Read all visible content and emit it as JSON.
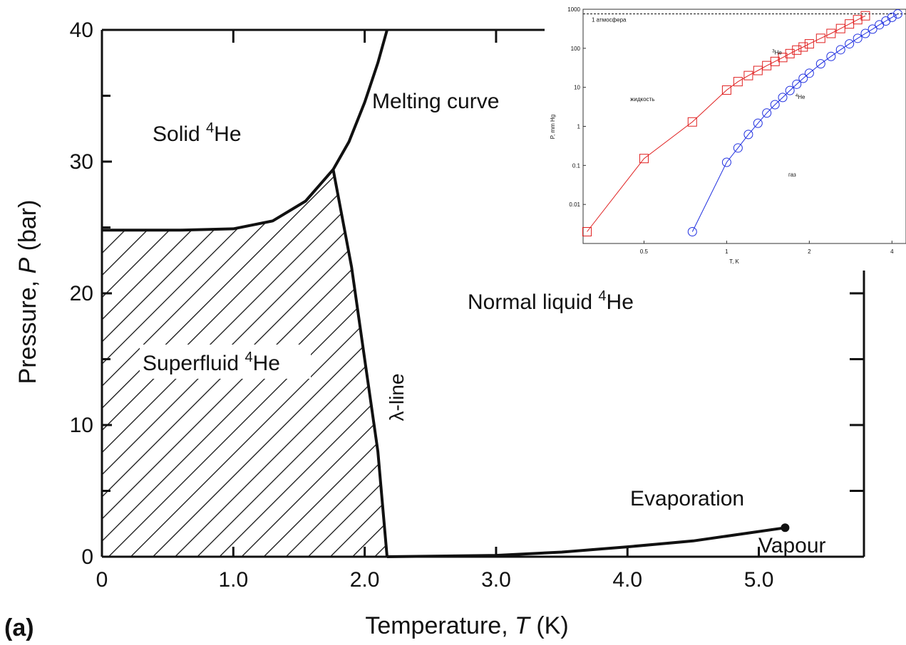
{
  "figure_label": "(a)",
  "chart_data": [
    {
      "type": "line",
      "title": "",
      "xlabel": "Temperature, T (K)",
      "ylabel": "Pressure, P (bar)",
      "xlabel_parts": {
        "pre": "Temperature, ",
        "var": "T",
        "post": " (K)"
      },
      "ylabel_parts": {
        "pre": "Pressure, ",
        "var": "P",
        "post": " (bar)"
      },
      "xlim": [
        0,
        5.8
      ],
      "ylim": [
        0,
        40
      ],
      "x_ticks": [
        0,
        1.0,
        2.0,
        3.0,
        4.0,
        5.0
      ],
      "x_tick_labels": [
        "0",
        "1.0",
        "2.0",
        "3.0",
        "4.0",
        "5.0"
      ],
      "y_ticks": [
        0,
        10,
        20,
        30,
        40
      ],
      "y_tick_labels": [
        "0",
        "10",
        "20",
        "30",
        "40"
      ],
      "grid": false,
      "series": [
        {
          "name": "Melting curve",
          "color": "#111111",
          "points": [
            [
              0,
              24.8
            ],
            [
              0.6,
              24.8
            ],
            [
              1.0,
              24.9
            ],
            [
              1.3,
              25.5
            ],
            [
              1.55,
              27
            ],
            [
              1.76,
              29.4
            ],
            [
              1.88,
              31.5
            ],
            [
              2.0,
              34.5
            ],
            [
              2.1,
              37.5
            ],
            [
              2.17,
              40
            ]
          ]
        },
        {
          "name": "λ-line",
          "color": "#111111",
          "points": [
            [
              1.76,
              29.4
            ],
            [
              1.9,
              22
            ],
            [
              2.0,
              15
            ],
            [
              2.1,
              8
            ],
            [
              2.17,
              0
            ]
          ]
        },
        {
          "name": "Evaporation",
          "color": "#111111",
          "points": [
            [
              2.17,
              0
            ],
            [
              3.0,
              0.1
            ],
            [
              3.5,
              0.35
            ],
            [
              4.0,
              0.75
            ],
            [
              4.5,
              1.2
            ],
            [
              5.2,
              2.2
            ]
          ]
        }
      ],
      "critical_point": [
        5.2,
        2.2
      ],
      "region_labels": {
        "solid": {
          "pre": "Solid ",
          "sup": "4",
          "post": "He"
        },
        "superfluid": {
          "pre": "Superfluid ",
          "sup": "4",
          "post": "He"
        },
        "normal": {
          "pre": "Normal liquid ",
          "sup": "4",
          "post": "He"
        },
        "melting": "Melting curve",
        "lambda": "λ-line",
        "evaporation": "Evaporation",
        "vapour": "Vapour"
      }
    },
    {
      "type": "scatter",
      "title": "",
      "xlabel": "T, K",
      "ylabel": "P, mm Hg",
      "x_scale": "log",
      "y_scale": "log",
      "xlim": [
        0.3,
        4.5
      ],
      "ylim": [
        0.001,
        1000
      ],
      "x_ticks": [
        0.5,
        1,
        2,
        4
      ],
      "x_tick_labels": [
        "0.5",
        "1",
        "2",
        "4"
      ],
      "y_ticks": [
        0.01,
        0.1,
        1,
        10,
        100,
        1000
      ],
      "y_tick_labels": [
        "0.01",
        "0.1",
        "1",
        "10",
        "100",
        "1000"
      ],
      "reference_line": {
        "y": 760,
        "label": "1 атмосфера"
      },
      "region_labels": {
        "liquid": "жидкость",
        "gas": "газ"
      },
      "series": [
        {
          "name": "3He",
          "label_sup": "3",
          "label_base": "He",
          "color": "#e02020",
          "marker": "square",
          "x": [
            0.31,
            0.5,
            0.75,
            1.0,
            1.1,
            1.2,
            1.3,
            1.4,
            1.5,
            1.6,
            1.7,
            1.8,
            1.9,
            2.0,
            2.2,
            2.4,
            2.6,
            2.8,
            3.0,
            3.2
          ],
          "y": [
            0.002,
            0.15,
            1.3,
            8.5,
            14,
            20,
            27,
            36,
            46,
            58,
            73,
            90,
            108,
            130,
            180,
            240,
            320,
            420,
            540,
            680
          ]
        },
        {
          "name": "4He",
          "label_sup": "4",
          "label_base": "He",
          "color": "#2030e0",
          "marker": "circle",
          "x": [
            0.75,
            1.0,
            1.1,
            1.2,
            1.3,
            1.4,
            1.5,
            1.6,
            1.7,
            1.8,
            1.9,
            2.0,
            2.2,
            2.4,
            2.6,
            2.8,
            3.0,
            3.2,
            3.4,
            3.6,
            3.8,
            4.0,
            4.2
          ],
          "y": [
            0.002,
            0.12,
            0.28,
            0.62,
            1.2,
            2.2,
            3.6,
            5.5,
            8.3,
            12,
            17,
            23,
            40,
            62,
            92,
            130,
            180,
            240,
            310,
            400,
            500,
            620,
            760
          ]
        }
      ]
    }
  ]
}
